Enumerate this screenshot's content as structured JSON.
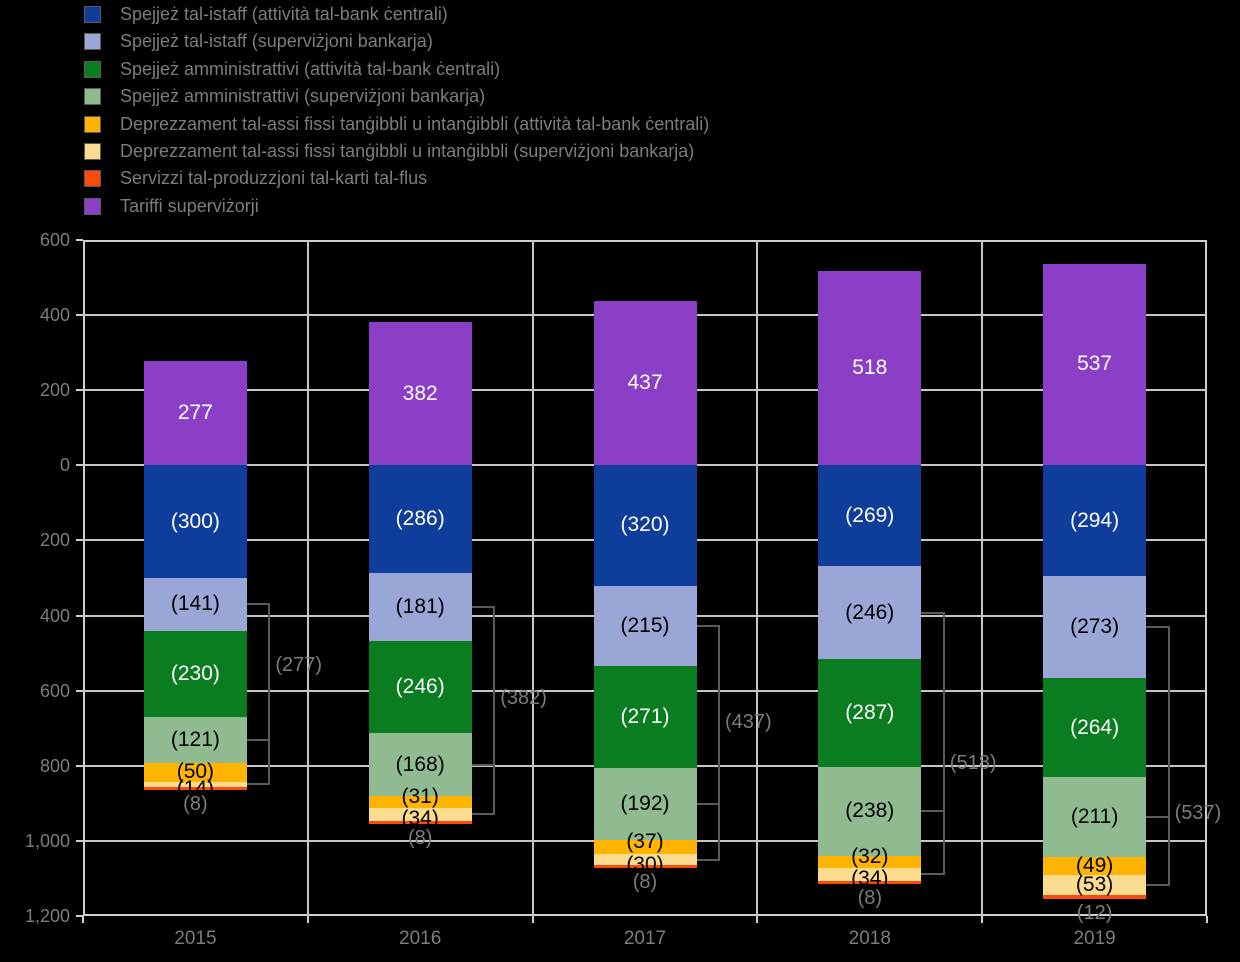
{
  "legend": {
    "items": [
      {
        "label": "Spejjeż tal-istaff (attività tal-bank ċentrali)",
        "color": "#0e3d9b"
      },
      {
        "label": "Spejjeż tal-istaff (superviżjoni bankarja)",
        "color": "#9aa6d6"
      },
      {
        "label": "Spejjeż amministrattivi (attività tal-bank ċentrali)",
        "color": "#0a7d20"
      },
      {
        "label": "Spejjeż amministrattivi (superviżjoni bankarja)",
        "color": "#90ba90"
      },
      {
        "label": "Deprezzament tal-assi fissi tanġibbli u intanġibbli (attività tal-bank ċentrali)",
        "color": "#feb400"
      },
      {
        "label": "Deprezzament tal-assi fissi tanġibbli u intanġibbli (superviżjoni bankarja)",
        "color": "#fbdc8e"
      },
      {
        "label": "Servizzi tal-produzzjoni tal-karti tal-flus",
        "color": "#fb4a0c"
      },
      {
        "label": "Tariffi superviżorji",
        "color": "#8a3fc6"
      }
    ]
  },
  "chart_data": {
    "type": "bar",
    "stacked": true,
    "title": "",
    "categories": [
      "2015",
      "2016",
      "2017",
      "2018",
      "2019"
    ],
    "y_axis": {
      "tick_labels": [
        "600",
        "400",
        "200",
        "0",
        "200",
        "400",
        "600",
        "800",
        "1,000",
        "1,200"
      ],
      "top_value": 600,
      "bottom_value": -1200,
      "grid_step": 200,
      "note": "values below zero are shown as positive magnitudes in parentheses"
    },
    "series": [
      {
        "name": "Tariffi superviżorji",
        "color": "#8a3fc6",
        "direction": "positive",
        "values": [
          277,
          382,
          437,
          518,
          537
        ],
        "labels": [
          "277",
          "382",
          "437",
          "518",
          "537"
        ],
        "label_color": "#ffffff"
      },
      {
        "name": "Spejjeż tal-istaff (attività tal-bank ċentrali)",
        "color": "#0e3d9b",
        "direction": "negative",
        "values": [
          300,
          286,
          320,
          269,
          294
        ],
        "labels": [
          "(300)",
          "(286)",
          "(320)",
          "(269)",
          "(294)"
        ],
        "label_color": "#ffffff"
      },
      {
        "name": "Spejjeż tal-istaff (superviżjoni bankarja)",
        "color": "#9aa6d6",
        "direction": "negative",
        "values": [
          141,
          181,
          215,
          246,
          273
        ],
        "labels": [
          "(141)",
          "(181)",
          "(215)",
          "(246)",
          "(273)"
        ],
        "label_color": "#000000",
        "supervision": true
      },
      {
        "name": "Spejjeż amministrattivi (attività tal-bank ċentrali)",
        "color": "#0a7d20",
        "direction": "negative",
        "values": [
          230,
          246,
          271,
          287,
          264
        ],
        "labels": [
          "(230)",
          "(246)",
          "(271)",
          "(287)",
          "(264)"
        ],
        "label_color": "#ffffff"
      },
      {
        "name": "Spejjeż amministrattivi (superviżjoni bankarja)",
        "color": "#90ba90",
        "direction": "negative",
        "values": [
          121,
          168,
          192,
          238,
          211
        ],
        "labels": [
          "(121)",
          "(168)",
          "(192)",
          "(238)",
          "(211)"
        ],
        "label_color": "#000000",
        "supervision": true
      },
      {
        "name": "Deprezzament tal-assi fissi tanġibbli u intanġibbli (attività tal-bank ċentrali)",
        "color": "#feb400",
        "direction": "negative",
        "values": [
          50,
          31,
          37,
          32,
          49
        ],
        "labels": [
          "(50)",
          "(31)",
          "(37)",
          "(32)",
          "(49)"
        ],
        "label_color": "#000000"
      },
      {
        "name": "Deprezzament tal-assi fissi tanġibbli u intanġibbli (superviżjoni bankarja)",
        "color": "#fbdc8e",
        "direction": "negative",
        "values": [
          14,
          34,
          30,
          34,
          53
        ],
        "labels": [
          "(14)",
          "(34)",
          "(30)",
          "(34)",
          "(53)"
        ],
        "label_color": "#000000",
        "supervision": true
      },
      {
        "name": "Servizzi tal-produzzjoni tal-karti tal-flus",
        "color": "#fb4a0c",
        "direction": "negative",
        "values": [
          8,
          8,
          8,
          8,
          12
        ],
        "labels": [
          "(8)",
          "(8)",
          "(8)",
          "(8)",
          "(12)"
        ],
        "label_color": "#000000",
        "label_position": "below"
      }
    ],
    "bracket_totals": {
      "description": "sum of the superviżjoni bankarja segments, linked by leader lines",
      "labels": [
        "(277)",
        "(382)",
        "(437)",
        "(518)",
        "(537)"
      ]
    },
    "legend_position": "top-left",
    "grid": true
  }
}
